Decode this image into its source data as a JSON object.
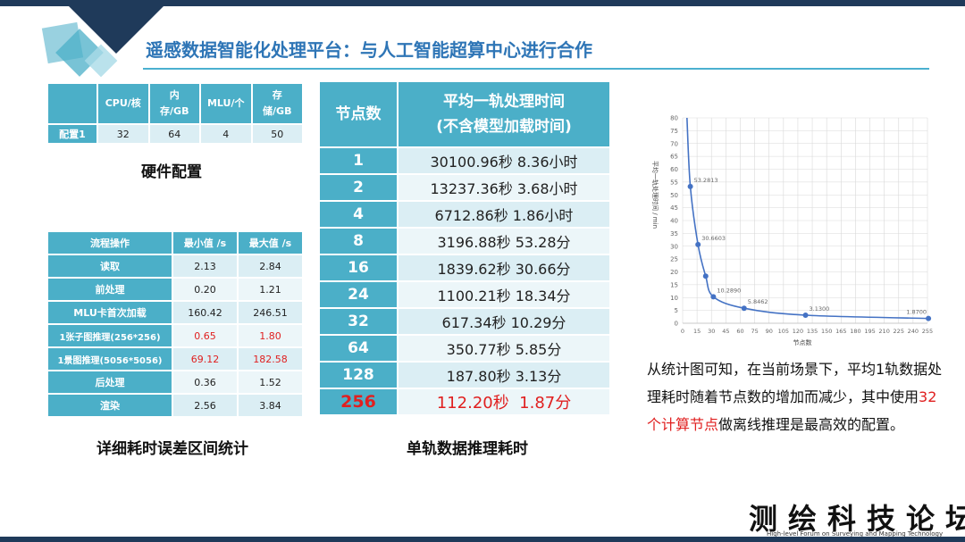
{
  "title": "遥感数据智能化处理平台：与人工智能超算中心进行合作",
  "hardware": {
    "headers": [
      "",
      "CPU/核",
      "内存/GB",
      "MLU/个",
      "存储/GB"
    ],
    "row": [
      "配置1",
      "32",
      "64",
      "4",
      "50"
    ],
    "caption": "硬件配置"
  },
  "process": {
    "headers": [
      "流程操作",
      "最小值 /s",
      "最大值 /s"
    ],
    "rows": [
      [
        "读取",
        "2.13",
        "2.84"
      ],
      [
        "前处理",
        "0.20",
        "1.21"
      ],
      [
        "MLU卡首次加载",
        "160.42",
        "246.51"
      ],
      [
        "1张子图推理(256*256)",
        "0.65",
        "1.80"
      ],
      [
        "1景图推理(5056*5056)",
        "69.12",
        "182.58"
      ],
      [
        "后处理",
        "0.36",
        "1.52"
      ],
      [
        "渲染",
        "2.56",
        "3.84"
      ]
    ],
    "caption": "详细耗时误差区间统计"
  },
  "node_table": {
    "header_nodes": "节点数",
    "header_time_line1": "平均一轨处理时间",
    "header_time_line2": "(不含模型加载时间)",
    "rows": [
      [
        "1",
        "30100.96秒 8.36小时"
      ],
      [
        "2",
        "13237.36秒 3.68小时"
      ],
      [
        "4",
        "6712.86秒 1.86小时"
      ],
      [
        "8",
        "3196.88秒 53.28分"
      ],
      [
        "16",
        "1839.62秒 30.66分"
      ],
      [
        "24",
        "1100.21秒 18.34分"
      ],
      [
        "32",
        "617.34秒 10.29分"
      ],
      [
        "64",
        "350.77秒 5.85分"
      ],
      [
        "128",
        "187.80秒 3.13分"
      ],
      [
        "256",
        "112.20秒  1.87分"
      ]
    ],
    "caption": "单轨数据推理耗时"
  },
  "chart_data": {
    "type": "line",
    "xlabel": "节点数",
    "ylabel": "平均一轨处理时间 / min",
    "ylim": [
      0,
      80
    ],
    "xlim": [
      0,
      255
    ],
    "yticks": [
      "0",
      "5",
      "10",
      "15",
      "20",
      "25",
      "30",
      "35",
      "40",
      "45",
      "50",
      "55",
      "60",
      "65",
      "70",
      "75",
      "80"
    ],
    "xticks": [
      "0",
      "15",
      "30",
      "45",
      "60",
      "75",
      "90",
      "105",
      "120",
      "135",
      "150",
      "165",
      "180",
      "195",
      "210",
      "225",
      "240",
      "255"
    ],
    "points": [
      {
        "x": 8,
        "y": 53.2813,
        "label": "53.2813"
      },
      {
        "x": 16,
        "y": 30.6603,
        "label": "30.6603"
      },
      {
        "x": 24,
        "y": 18.34,
        "label": ""
      },
      {
        "x": 32,
        "y": 10.289,
        "label": "10.2890"
      },
      {
        "x": 64,
        "y": 5.8462,
        "label": "5.8462"
      },
      {
        "x": 128,
        "y": 3.13,
        "label": "3.1300"
      },
      {
        "x": 256,
        "y": 1.87,
        "label": "1.8700"
      }
    ],
    "line_color": "#4472c4",
    "grid": true
  },
  "description": {
    "part1": "从统计图可知，在当前场景下，平均1轨数据处理耗时随着节点数的增加而减少，其中使用",
    "highlight": "32个计算节点",
    "part2": "做离线推理是最高效的配置。"
  },
  "logo": {
    "text": "测绘科技论坛",
    "subtitle": "High-level Forum on Surveying and Mapping Technology"
  }
}
